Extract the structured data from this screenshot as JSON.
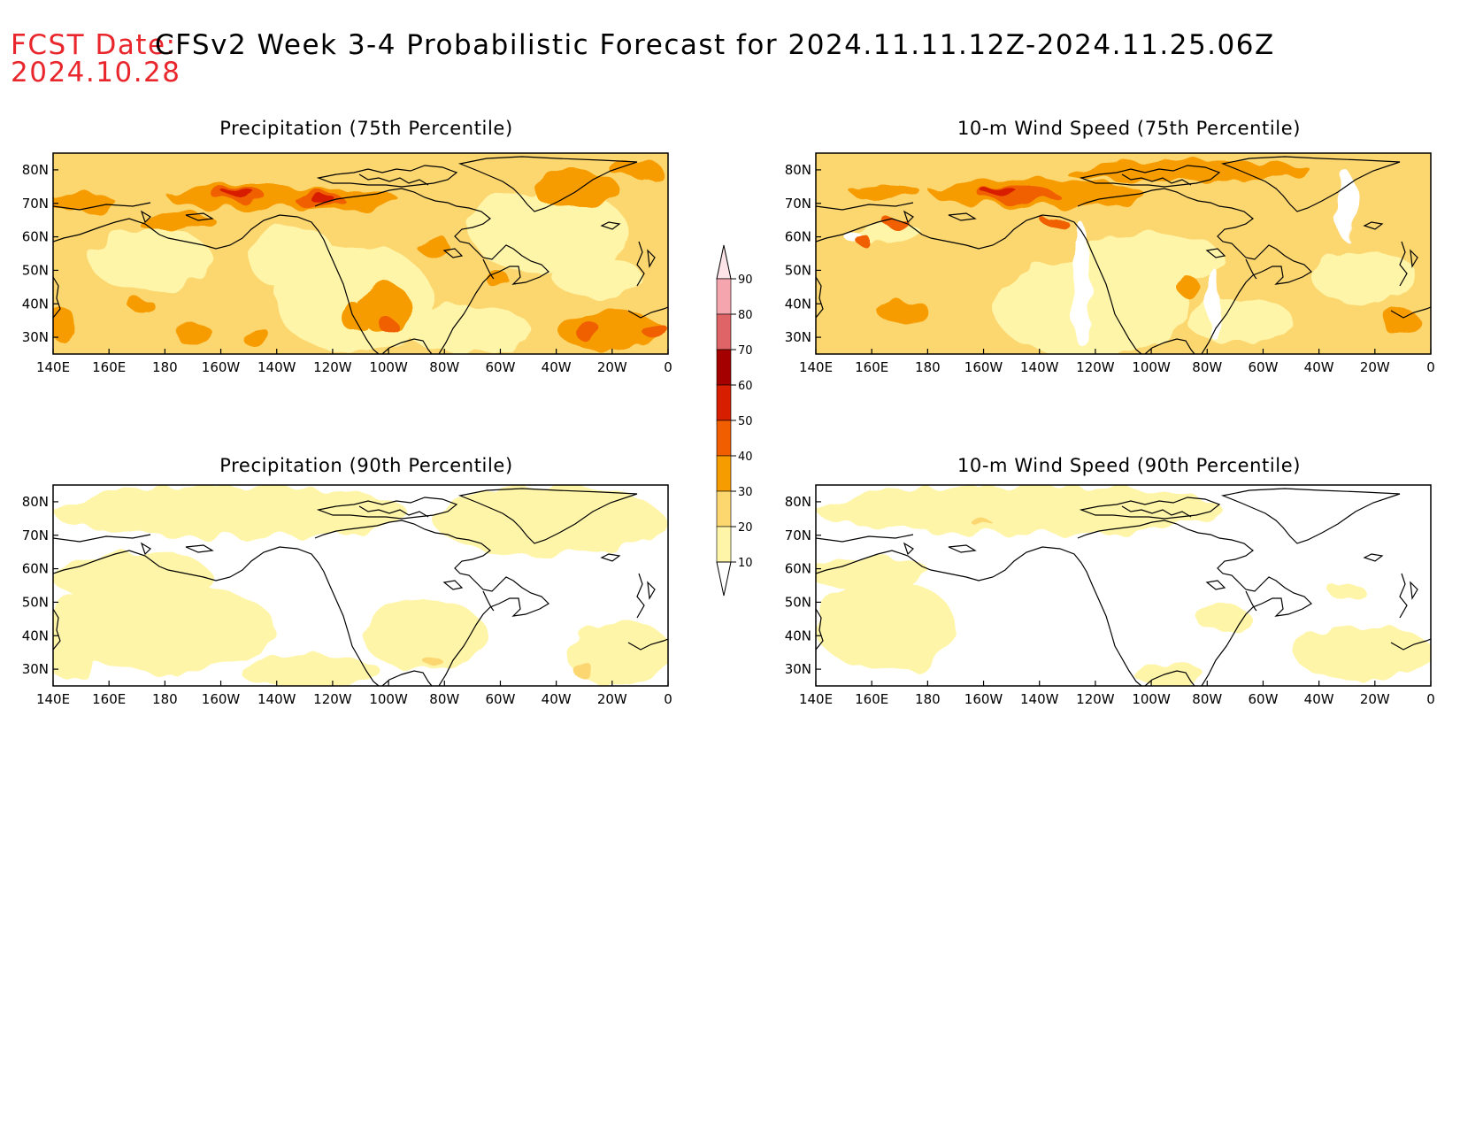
{
  "header": {
    "fcst_label": "FCST Date:",
    "fcst_date": "2024.10.28",
    "title": "CFSv2 Week 3-4 Probabilistic Forecast for 2024.11.11.12Z-2024.11.25.06Z"
  },
  "axes": {
    "x_ticks": [
      "140E",
      "160E",
      "180",
      "160W",
      "140W",
      "120W",
      "100W",
      "80W",
      "60W",
      "40W",
      "20W",
      "0"
    ],
    "y_ticks": [
      "80N",
      "70N",
      "60N",
      "50N",
      "40N",
      "30N"
    ]
  },
  "panels": [
    {
      "title": "Precipitation (75th Percentile)"
    },
    {
      "title": "10-m Wind Speed (75th Percentile)"
    },
    {
      "title": "Precipitation (90th Percentile)"
    },
    {
      "title": "10-m Wind Speed (90th Percentile)"
    }
  ],
  "colorbar": {
    "levels": [
      "90",
      "80",
      "70",
      "60",
      "50",
      "40",
      "30",
      "20",
      "10"
    ],
    "colors": [
      "#f5a5ae",
      "#de6468",
      "#a50000",
      "#d71e00",
      "#f05e00",
      "#f79c00",
      "#fcd66f",
      "#fff5a8"
    ]
  },
  "colors": {
    "fcst_label": "#e8262b",
    "level_10_20": "#fff5a8",
    "level_20_30": "#fcd66f",
    "level_30_40": "#f79c00",
    "level_40_50": "#f05e00",
    "level_50_60": "#d71e00",
    "level_60_70": "#a50000"
  }
}
